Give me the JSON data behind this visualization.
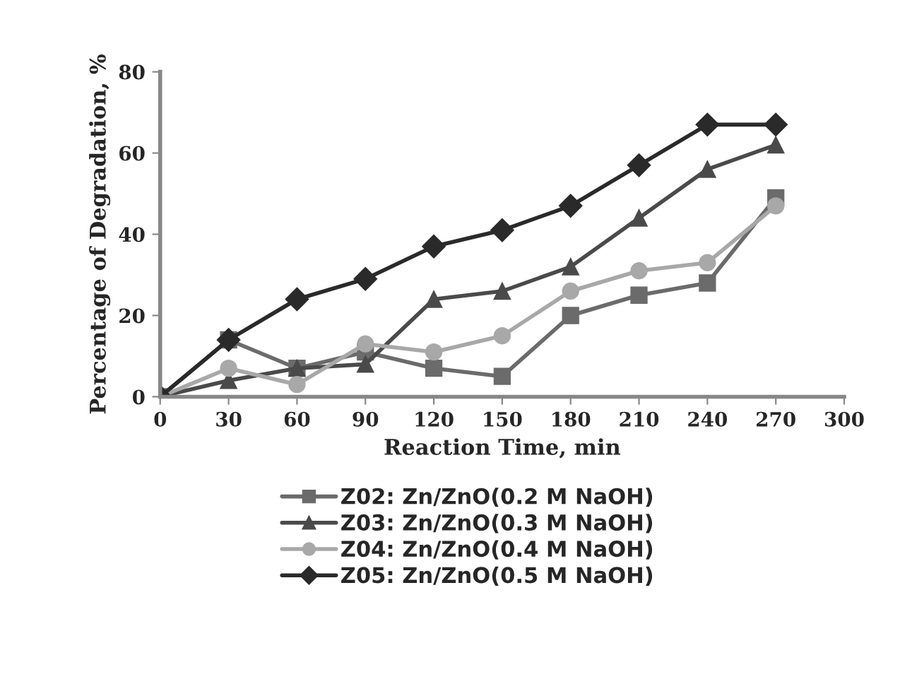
{
  "chart_data": {
    "type": "line",
    "xlabel": "Reaction Time, min",
    "ylabel": "Percentage of Degradation, %",
    "x": [
      0,
      30,
      60,
      90,
      120,
      150,
      180,
      210,
      240,
      270
    ],
    "xlim": [
      0,
      300
    ],
    "xticks": [
      0,
      30,
      60,
      90,
      120,
      150,
      180,
      210,
      240,
      270,
      300
    ],
    "ylim": [
      0,
      80
    ],
    "yticks": [
      0,
      20,
      40,
      60,
      80
    ],
    "grid": false,
    "legend": "bottom",
    "line_style": "solid",
    "series": [
      {
        "name": "Z02: Zn/ZnO(0.2 M NaOH)",
        "color": "#6b6b6b",
        "marker": "square",
        "values": [
          0,
          14,
          7,
          11,
          7,
          5,
          20,
          25,
          28,
          49
        ]
      },
      {
        "name": "Z03: Zn/ZnO(0.3 M NaOH)",
        "color": "#4a4a4a",
        "marker": "triangle",
        "values": [
          0,
          4,
          7,
          8,
          24,
          26,
          32,
          44,
          56,
          62
        ]
      },
      {
        "name": "Z04: Zn/ZnO(0.4 M NaOH)",
        "color": "#a8a8a8",
        "marker": "circle",
        "values": [
          0,
          7,
          3,
          13,
          11,
          15,
          26,
          31,
          33,
          47
        ]
      },
      {
        "name": "Z05: Zn/ZnO(0.5 M NaOH)",
        "color": "#2a2a2a",
        "marker": "diamond",
        "values": [
          0,
          14,
          24,
          29,
          37,
          41,
          47,
          57,
          67,
          67
        ]
      }
    ]
  }
}
